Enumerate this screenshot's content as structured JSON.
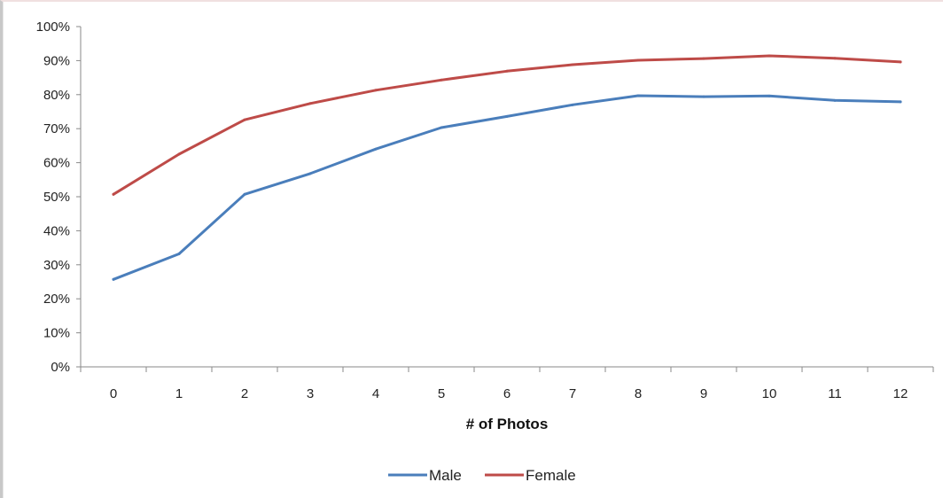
{
  "chart_data": {
    "type": "line",
    "title": "",
    "xlabel": "# of Photos",
    "ylabel": "",
    "x": [
      0,
      1,
      2,
      3,
      4,
      5,
      6,
      7,
      8,
      9,
      10,
      11,
      12
    ],
    "ylim": [
      0,
      100
    ],
    "yticks": [
      0,
      10,
      20,
      30,
      40,
      50,
      60,
      70,
      80,
      90,
      100
    ],
    "ytick_suffix": "%",
    "grid": false,
    "legend_position": "bottom",
    "series": [
      {
        "name": "Male",
        "color": "#4a7ebb",
        "values": [
          25.7,
          33.2,
          50.7,
          56.8,
          64.0,
          70.3,
          73.6,
          77.0,
          79.7,
          79.4,
          79.6,
          78.3,
          77.9
        ]
      },
      {
        "name": "Female",
        "color": "#be4b48",
        "values": [
          50.7,
          62.5,
          72.6,
          77.4,
          81.3,
          84.3,
          86.9,
          88.8,
          90.1,
          90.6,
          91.4,
          90.7,
          89.6
        ]
      }
    ]
  }
}
